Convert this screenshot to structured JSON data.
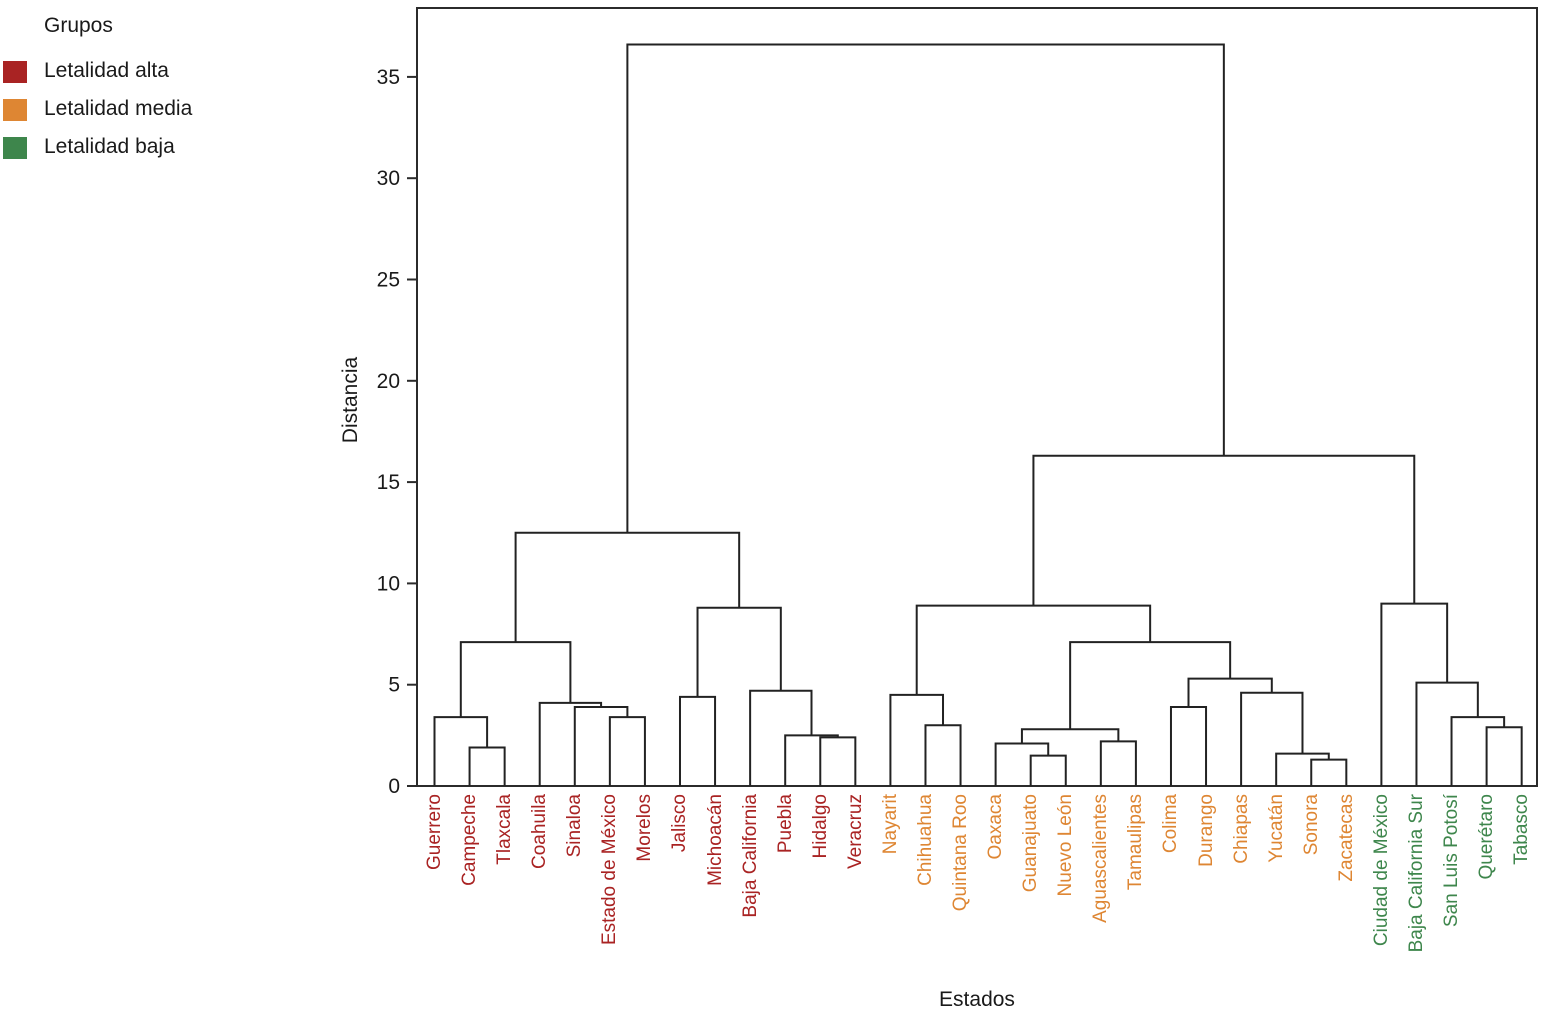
{
  "chart_data": {
    "type": "dendrogram",
    "xlabel": "Estados",
    "ylabel": "Distancia",
    "ylim": [
      0,
      38.4
    ],
    "y_ticks": [
      0,
      5,
      10,
      15,
      20,
      25,
      30,
      35
    ],
    "grid": false,
    "link_color": "#222222",
    "legend": {
      "title": "Grupos",
      "position": "top-left",
      "items": [
        {
          "label": "Letalidad alta",
          "group": "alta",
          "color": "#A92323"
        },
        {
          "label": "Letalidad media",
          "group": "media",
          "color": "#DE8633"
        },
        {
          "label": "Letalidad baja",
          "group": "baja",
          "color": "#3E864C"
        }
      ]
    },
    "leaves": [
      {
        "name": "Guerrero",
        "group": "alta"
      },
      {
        "name": "Campeche",
        "group": "alta"
      },
      {
        "name": "Tlaxcala",
        "group": "alta"
      },
      {
        "name": "Coahuila",
        "group": "alta"
      },
      {
        "name": "Sinaloa",
        "group": "alta"
      },
      {
        "name": "Estado de México",
        "group": "alta"
      },
      {
        "name": "Morelos",
        "group": "alta"
      },
      {
        "name": "Jalisco",
        "group": "alta"
      },
      {
        "name": "Michoacán",
        "group": "alta"
      },
      {
        "name": "Baja California",
        "group": "alta"
      },
      {
        "name": "Puebla",
        "group": "alta"
      },
      {
        "name": "Hidalgo",
        "group": "alta"
      },
      {
        "name": "Veracruz",
        "group": "alta"
      },
      {
        "name": "Nayarit",
        "group": "media"
      },
      {
        "name": "Chihuahua",
        "group": "media"
      },
      {
        "name": "Quintana Roo",
        "group": "media"
      },
      {
        "name": "Oaxaca",
        "group": "media"
      },
      {
        "name": "Guanajuato",
        "group": "media"
      },
      {
        "name": "Nuevo León",
        "group": "media"
      },
      {
        "name": "Aguascalientes",
        "group": "media"
      },
      {
        "name": "Tamaulipas",
        "group": "media"
      },
      {
        "name": "Colima",
        "group": "media"
      },
      {
        "name": "Durango",
        "group": "media"
      },
      {
        "name": "Chiapas",
        "group": "media"
      },
      {
        "name": "Yucatán",
        "group": "media"
      },
      {
        "name": "Sonora",
        "group": "media"
      },
      {
        "name": "Zacatecas",
        "group": "media"
      },
      {
        "name": "Ciudad de México",
        "group": "baja"
      },
      {
        "name": "Baja California Sur",
        "group": "baja"
      },
      {
        "name": "San Luis Potosí",
        "group": "baja"
      },
      {
        "name": "Querétaro",
        "group": "baja"
      },
      {
        "name": "Tabasco",
        "group": "baja"
      }
    ],
    "tree": {
      "h": 36.6,
      "children": [
        {
          "h": 12.5,
          "children": [
            {
              "h": 7.1,
              "children": [
                {
                  "h": 3.4,
                  "children": [
                    "Guerrero",
                    {
                      "h": 1.9,
                      "children": [
                        "Campeche",
                        "Tlaxcala"
                      ]
                    }
                  ]
                },
                {
                  "h": 4.1,
                  "children": [
                    "Coahuila",
                    {
                      "h": 3.9,
                      "children": [
                        "Sinaloa",
                        {
                          "h": 3.4,
                          "children": [
                            "Estado de México",
                            "Morelos"
                          ]
                        }
                      ]
                    }
                  ]
                }
              ]
            },
            {
              "h": 8.8,
              "children": [
                {
                  "h": 4.4,
                  "children": [
                    "Jalisco",
                    "Michoacán"
                  ]
                },
                {
                  "h": 4.7,
                  "children": [
                    "Baja California",
                    {
                      "h": 2.5,
                      "children": [
                        "Puebla",
                        {
                          "h": 2.4,
                          "children": [
                            "Hidalgo",
                            "Veracruz"
                          ]
                        }
                      ]
                    }
                  ]
                }
              ]
            }
          ]
        },
        {
          "h": 16.3,
          "children": [
            {
              "h": 8.9,
              "children": [
                {
                  "h": 4.5,
                  "children": [
                    "Nayarit",
                    {
                      "h": 3.0,
                      "children": [
                        "Chihuahua",
                        "Quintana Roo"
                      ]
                    }
                  ]
                },
                {
                  "h": 7.1,
                  "children": [
                    {
                      "h": 2.8,
                      "children": [
                        {
                          "h": 2.1,
                          "children": [
                            "Oaxaca",
                            {
                              "h": 1.5,
                              "children": [
                                "Guanajuato",
                                "Nuevo León"
                              ]
                            }
                          ]
                        },
                        {
                          "h": 2.2,
                          "children": [
                            "Aguascalientes",
                            "Tamaulipas"
                          ]
                        }
                      ]
                    },
                    {
                      "h": 5.3,
                      "children": [
                        {
                          "h": 3.9,
                          "children": [
                            "Colima",
                            "Durango"
                          ]
                        },
                        {
                          "h": 4.6,
                          "children": [
                            "Chiapas",
                            {
                              "h": 1.6,
                              "children": [
                                "Yucatán",
                                {
                                  "h": 1.3,
                                  "children": [
                                    "Sonora",
                                    "Zacatecas"
                                  ]
                                }
                              ]
                            }
                          ]
                        }
                      ]
                    }
                  ]
                }
              ]
            },
            {
              "h": 9.0,
              "children": [
                "Ciudad de México",
                {
                  "h": 5.1,
                  "children": [
                    "Baja California Sur",
                    {
                      "h": 3.4,
                      "children": [
                        "San Luis Potosí",
                        {
                          "h": 2.9,
                          "children": [
                            "Querétaro",
                            "Tabasco"
                          ]
                        }
                      ]
                    }
                  ]
                }
              ]
            }
          ]
        }
      ]
    }
  }
}
